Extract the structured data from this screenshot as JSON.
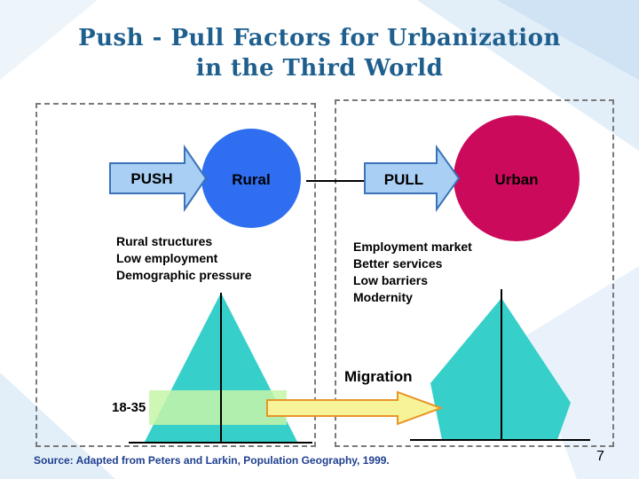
{
  "title": {
    "line1": "Push - Pull Factors for Urbanization",
    "line2": "in the Third World"
  },
  "left": {
    "arrow_label": "PUSH",
    "circle_label": "Rural",
    "circle_color": "#2f6ef0",
    "factors": [
      "Rural structures",
      "Low employment",
      "Demographic pressure"
    ],
    "age_label": "18-35"
  },
  "right": {
    "arrow_label": "PULL",
    "circle_label": "Urban",
    "circle_color": "#cc0a5c",
    "factors": [
      "Employment market",
      "Better services",
      "Low barriers",
      "Modernity"
    ]
  },
  "migration_label": "Migration",
  "source": "Source: Adapted from Peters and Larkin, Population Geography, 1999.",
  "page_number": "7",
  "colors": {
    "title": "#1e5f8e",
    "arrow_fill": "#a9cff5",
    "arrow_stroke": "#3b72b8",
    "pyramid": "#36cfc9",
    "band": "#b7f0a6",
    "migration_arrow": "#f6f399",
    "migration_arrow_stroke": "#e8952a",
    "source": "#1e3f8e"
  }
}
